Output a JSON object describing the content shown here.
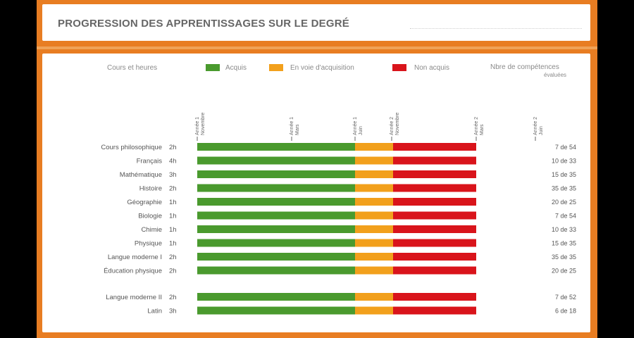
{
  "header": {
    "title": "PROGRESSION DES APPRENTISSAGES SUR LE DEGRÉ"
  },
  "legend": {
    "courses_label": "Cours et heures",
    "items": [
      {
        "label": "Acquis",
        "color": "#4a9a2e"
      },
      {
        "label": "En voie d'acquisition",
        "color": "#f2a01c"
      },
      {
        "label": "Non acquis",
        "color": "#d9141b"
      }
    ],
    "count_label_line1": "Nbre de compétences",
    "count_label_line2": "évaluées"
  },
  "chart_data": {
    "type": "bar",
    "stacked": true,
    "orientation": "horizontal",
    "title": "PROGRESSION DES APPRENTISSAGES SUR LE DEGRÉ",
    "timeline_markers": [
      {
        "label": "Année 1",
        "sub": "Novembre",
        "position": 0.0
      },
      {
        "label": "Année 1",
        "sub": "Mars",
        "position": 0.335
      },
      {
        "label": "Année 1",
        "sub": "Juin",
        "position": 0.56
      },
      {
        "label": "Année 2",
        "sub": "Novembre",
        "position": 0.69
      },
      {
        "label": "Année 2",
        "sub": "Mars",
        "position": 0.99
      },
      {
        "label": "Année 2",
        "sub": "Juin",
        "position": 1.2
      }
    ],
    "series": [
      {
        "name": "Acquis",
        "color": "#4a9a2e"
      },
      {
        "name": "En voie d'acquisition",
        "color": "#f2a01c"
      },
      {
        "name": "Non acquis",
        "color": "#d9141b"
      }
    ],
    "rows": [
      {
        "course": "Cours philosophique",
        "hours": "2h",
        "acquis": 0.56,
        "en_voie": 0.135,
        "non_acquis": 0.295,
        "count": "7 de 54",
        "group": 1
      },
      {
        "course": "Français",
        "hours": "4h",
        "acquis": 0.56,
        "en_voie": 0.135,
        "non_acquis": 0.295,
        "count": "10 de 33",
        "group": 1
      },
      {
        "course": "Mathématique",
        "hours": "3h",
        "acquis": 0.56,
        "en_voie": 0.135,
        "non_acquis": 0.295,
        "count": "15 de 35",
        "group": 1
      },
      {
        "course": "Histoire",
        "hours": "2h",
        "acquis": 0.56,
        "en_voie": 0.135,
        "non_acquis": 0.295,
        "count": "35 de 35",
        "group": 1
      },
      {
        "course": "Géographie",
        "hours": "1h",
        "acquis": 0.56,
        "en_voie": 0.135,
        "non_acquis": 0.295,
        "count": "20 de 25",
        "group": 1
      },
      {
        "course": "Biologie",
        "hours": "1h",
        "acquis": 0.56,
        "en_voie": 0.135,
        "non_acquis": 0.295,
        "count": "7 de 54",
        "group": 1
      },
      {
        "course": "Chimie",
        "hours": "1h",
        "acquis": 0.56,
        "en_voie": 0.135,
        "non_acquis": 0.295,
        "count": "10 de 33",
        "group": 1
      },
      {
        "course": "Physique",
        "hours": "1h",
        "acquis": 0.56,
        "en_voie": 0.135,
        "non_acquis": 0.295,
        "count": "15 de 35",
        "group": 1
      },
      {
        "course": "Langue moderne I",
        "hours": "2h",
        "acquis": 0.56,
        "en_voie": 0.135,
        "non_acquis": 0.295,
        "count": "35 de 35",
        "group": 1
      },
      {
        "course": "Éducation physique",
        "hours": "2h",
        "acquis": 0.56,
        "en_voie": 0.135,
        "non_acquis": 0.295,
        "count": "20 de 25",
        "group": 1
      },
      {
        "course": "Langue moderne II",
        "hours": "2h",
        "acquis": 0.56,
        "en_voie": 0.135,
        "non_acquis": 0.295,
        "count": "7 de 52",
        "group": 2
      },
      {
        "course": "Latin",
        "hours": "3h",
        "acquis": 0.56,
        "en_voie": 0.135,
        "non_acquis": 0.295,
        "count": "6 de 18",
        "group": 2
      }
    ]
  }
}
